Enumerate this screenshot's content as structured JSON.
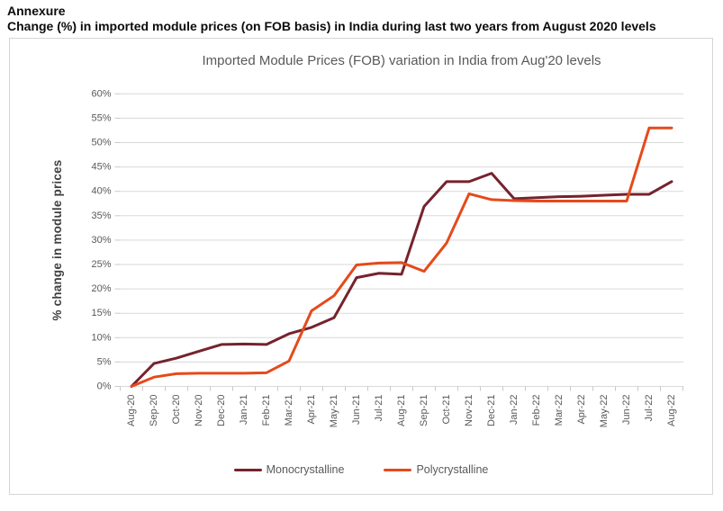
{
  "page": {
    "annexure_label": "Annexure",
    "heading": "Change (%) in imported module prices (on FOB basis) in India during last two years from August 2020 levels"
  },
  "colors": {
    "gridline": "#d9d9d9",
    "tick_mark": "#c9c9c9",
    "axis_text": "#595959",
    "title_text": "#595959",
    "chart_border": "#d5d5d5",
    "monocrystalline": "#75232e",
    "polycrystalline": "#e54a1b"
  },
  "chart_data": {
    "type": "line",
    "title": "Imported Module Prices (FOB) variation in India from Aug'20 levels",
    "xlabel": "",
    "ylabel": "% change in module prices",
    "ylim": [
      0,
      60
    ],
    "ytick_step": 5,
    "ytick_suffix": "%",
    "grid": true,
    "legend_position": "bottom",
    "categories": [
      "Aug-20",
      "Sep-20",
      "Oct-20",
      "Nov-20",
      "Dec-20",
      "Jan-21",
      "Feb-21",
      "Mar-21",
      "Apr-21",
      "May-21",
      "Jun-21",
      "Jul-21",
      "Aug-21",
      "Sep-21",
      "Oct-21",
      "Nov-21",
      "Dec-21",
      "Jan-22",
      "Feb-22",
      "Mar-22",
      "Apr-22",
      "May-22",
      "Jun-22",
      "Jul-22",
      "Aug-22"
    ],
    "series": [
      {
        "name": "Monocrystalline",
        "color": "#75232e",
        "values": [
          0,
          4.7,
          5.8,
          7.2,
          8.6,
          8.7,
          8.6,
          10.8,
          12.1,
          14.1,
          22.3,
          23.2,
          23.0,
          36.9,
          42.0,
          42.0,
          43.7,
          38.5,
          38.7,
          38.9,
          39.0,
          39.2,
          39.4,
          39.4,
          42.0
        ]
      },
      {
        "name": "Polycrystalline",
        "color": "#e54a1b",
        "values": [
          0,
          1.9,
          2.6,
          2.7,
          2.7,
          2.7,
          2.8,
          5.2,
          15.5,
          18.6,
          24.9,
          25.3,
          25.4,
          23.6,
          29.4,
          39.5,
          38.3,
          38.1,
          38.0,
          38.0,
          38.0,
          38.0,
          38.0,
          53.0,
          53.0
        ]
      }
    ]
  }
}
